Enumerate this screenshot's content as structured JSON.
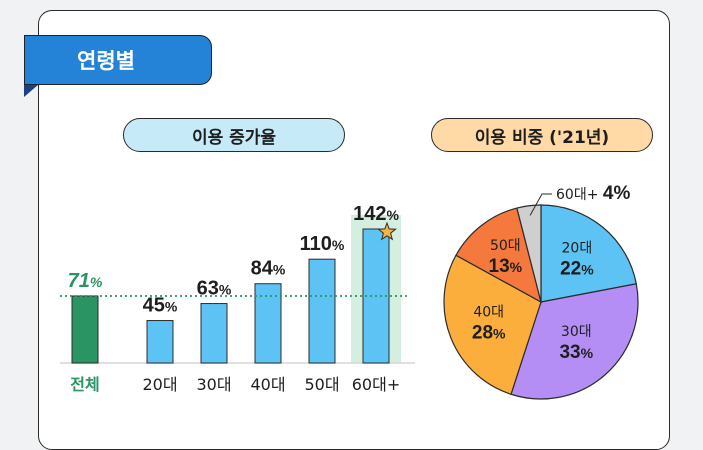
{
  "section_label": "연령별",
  "colors": {
    "tab": "#2483d6",
    "overall_bar": "#2a9463",
    "age_bar": "#5dc3f4",
    "highlight": "#d4efe0",
    "star": "#f4b343",
    "dotted_line": "#2a9463",
    "pie_20s": "#5dc3f4",
    "pie_30s": "#b48ef5",
    "pie_40s": "#fbae3c",
    "pie_50s": "#f5783c",
    "pie_60s": "#cfcfcf"
  },
  "chart_data": [
    {
      "type": "bar",
      "title": "이용 증가율",
      "categories": [
        "전체",
        "20대",
        "30대",
        "40대",
        "50대",
        "60대+"
      ],
      "values": [
        71,
        45,
        63,
        84,
        110,
        142
      ],
      "value_labels": [
        "71%",
        "45%",
        "63%",
        "84%",
        "110%",
        "142%"
      ],
      "reference_line": 71,
      "highlight_category": "60대+",
      "highlight_icon": "star-icon"
    },
    {
      "type": "pie",
      "title": "이용 비중 ('21년)",
      "categories": [
        "20대",
        "30대",
        "40대",
        "50대",
        "60대+"
      ],
      "values": [
        22,
        33,
        28,
        13,
        4
      ],
      "value_labels": [
        "22%",
        "33%",
        "28%",
        "13%",
        "4%"
      ]
    }
  ]
}
